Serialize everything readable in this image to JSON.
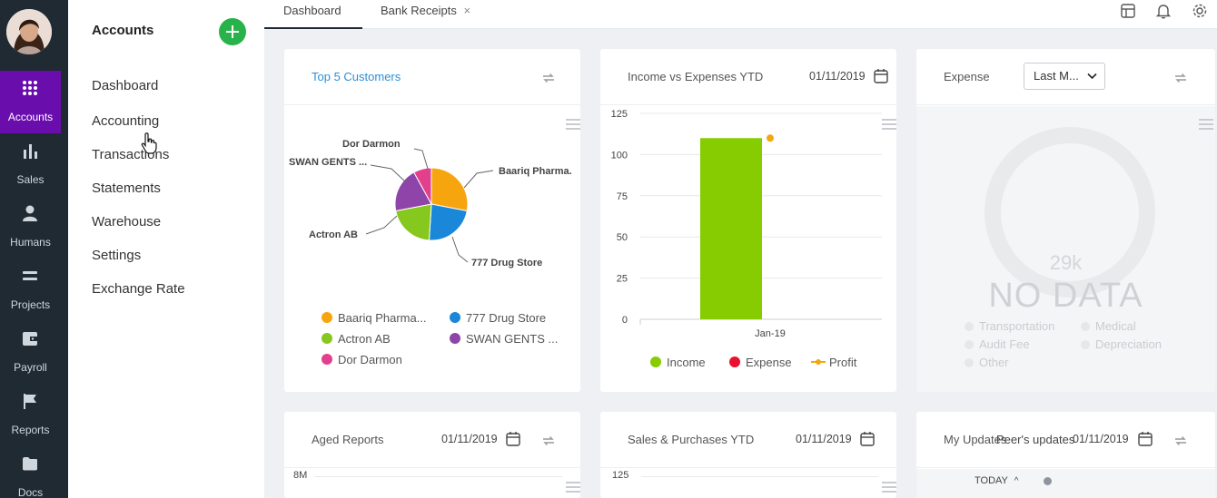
{
  "rail": {
    "items": [
      {
        "label": "Accounts",
        "icon": "grid-icon",
        "active": true
      },
      {
        "label": "Sales",
        "icon": "bar-chart-icon"
      },
      {
        "label": "Humans",
        "icon": "person-icon"
      },
      {
        "label": "Projects",
        "icon": "stack-icon"
      },
      {
        "label": "Payroll",
        "icon": "wallet-icon"
      },
      {
        "label": "Reports",
        "icon": "flag-icon"
      },
      {
        "label": "Docs",
        "icon": "folder-icon"
      }
    ]
  },
  "menu": {
    "title": "Accounts",
    "items": [
      "Dashboard",
      "Accounting",
      "Transactions",
      "Statements",
      "Warehouse",
      "Settings",
      "Exchange Rate"
    ]
  },
  "tabs": [
    {
      "label": "Dashboard",
      "active": true
    },
    {
      "label": "Bank Receipts",
      "closable": true
    }
  ],
  "widgets": {
    "top_customers": {
      "title": "Top 5 Customers",
      "slice_labels": [
        "Dor Darmon",
        "SWAN GENTS ...",
        "Baariq Pharma.",
        "Actron AB",
        "777 Drug Store"
      ],
      "legend": [
        "Baariq Pharma...",
        "777 Drug Store",
        "Actron AB",
        "SWAN GENTS ...",
        "Dor Darmon"
      ]
    },
    "income_expenses": {
      "title": "Income vs Expenses YTD",
      "date": "01/11/2019"
    },
    "expense": {
      "title": "Expense",
      "select_value": "Last M...",
      "center_value": "29k",
      "no_data": "NO DATA",
      "legend": [
        "Transportation",
        "Medical",
        "Audit Fee",
        "Depreciation",
        "Other"
      ]
    },
    "aged_reports": {
      "title": "Aged Reports",
      "date": "01/11/2019",
      "axis_top": "8M"
    },
    "sales_purchases": {
      "title": "Sales & Purchases YTD",
      "date": "01/11/2019",
      "axis_top": "125"
    },
    "updates": {
      "title_a": "My Updates",
      "title_b": "Peer's updates",
      "date": "01/11/2019",
      "today_label": "TODAY"
    }
  },
  "chart_data": [
    {
      "type": "pie",
      "title": "Top 5 Customers",
      "categories": [
        "Baariq Pharma...",
        "777 Drug Store",
        "Actron AB",
        "SWAN GENTS ...",
        "Dor Darmon"
      ],
      "values": [
        28,
        23,
        21,
        20,
        8
      ],
      "colors": [
        "#f7a50f",
        "#1b87d8",
        "#86c81d",
        "#8e44a8",
        "#e2408d"
      ],
      "legend": "bottom"
    },
    {
      "type": "bar",
      "title": "Income vs Expenses YTD",
      "categories": [
        "Jan-19"
      ],
      "series": [
        {
          "name": "Income",
          "values": [
            110
          ],
          "color": "#86cc00"
        },
        {
          "name": "Expense",
          "values": [
            0
          ],
          "color": "#e8122e"
        },
        {
          "name": "Profit",
          "values": [
            110
          ],
          "color": "#f2a70f"
        }
      ],
      "yticks": [
        "0",
        "25",
        "50",
        "75",
        "100",
        "125"
      ],
      "ylim": [
        0,
        125
      ],
      "grid": true,
      "legend": "bottom"
    }
  ]
}
